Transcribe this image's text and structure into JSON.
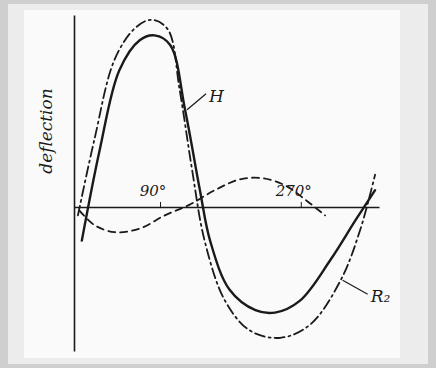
{
  "chart_data": {
    "type": "line",
    "y_label": "deflection",
    "xlim": [
      -20,
      370
    ],
    "ylim": [
      -1.2,
      1.6
    ],
    "xticks": [
      {
        "value": 90,
        "label": "90°"
      },
      {
        "value": 270,
        "label": "270°"
      }
    ],
    "tick_labels": "x",
    "grid": false,
    "series": [
      {
        "name": "H",
        "color": "#1a1a1a",
        "line_style": "solid",
        "x": [
          -10,
          13,
          38,
          64,
          83,
          103,
          122,
          141,
          154,
          179,
          212,
          237,
          269,
          308,
          340,
          365
        ],
        "values": [
          -0.28,
          0.48,
          1.14,
          1.39,
          1.43,
          1.35,
          0.81,
          0.14,
          -0.28,
          -0.69,
          -0.86,
          -0.88,
          -0.78,
          -0.44,
          -0.11,
          0.14
        ]
      },
      {
        "name": "R₂",
        "color": "#1a1a1a",
        "line_style": "dashdot",
        "x": [
          -15,
          6,
          32,
          58,
          79,
          100,
          115,
          131,
          147,
          173,
          205,
          244,
          282,
          321,
          346,
          365
        ],
        "values": [
          -0.07,
          0.56,
          1.23,
          1.49,
          1.56,
          1.48,
          0.98,
          0.31,
          -0.28,
          -0.78,
          -1.03,
          -1.09,
          -0.98,
          -0.61,
          -0.19,
          0.27
        ]
      },
      {
        "color": "#1a1a1a",
        "line_style": "dashed",
        "x": [
          -13,
          6,
          32,
          64,
          96,
          128,
          160,
          192,
          221,
          250,
          276,
          301
        ],
        "values": [
          -0.03,
          -0.15,
          -0.21,
          -0.18,
          -0.07,
          0.02,
          0.14,
          0.23,
          0.24,
          0.18,
          0.06,
          -0.07
        ]
      }
    ]
  }
}
